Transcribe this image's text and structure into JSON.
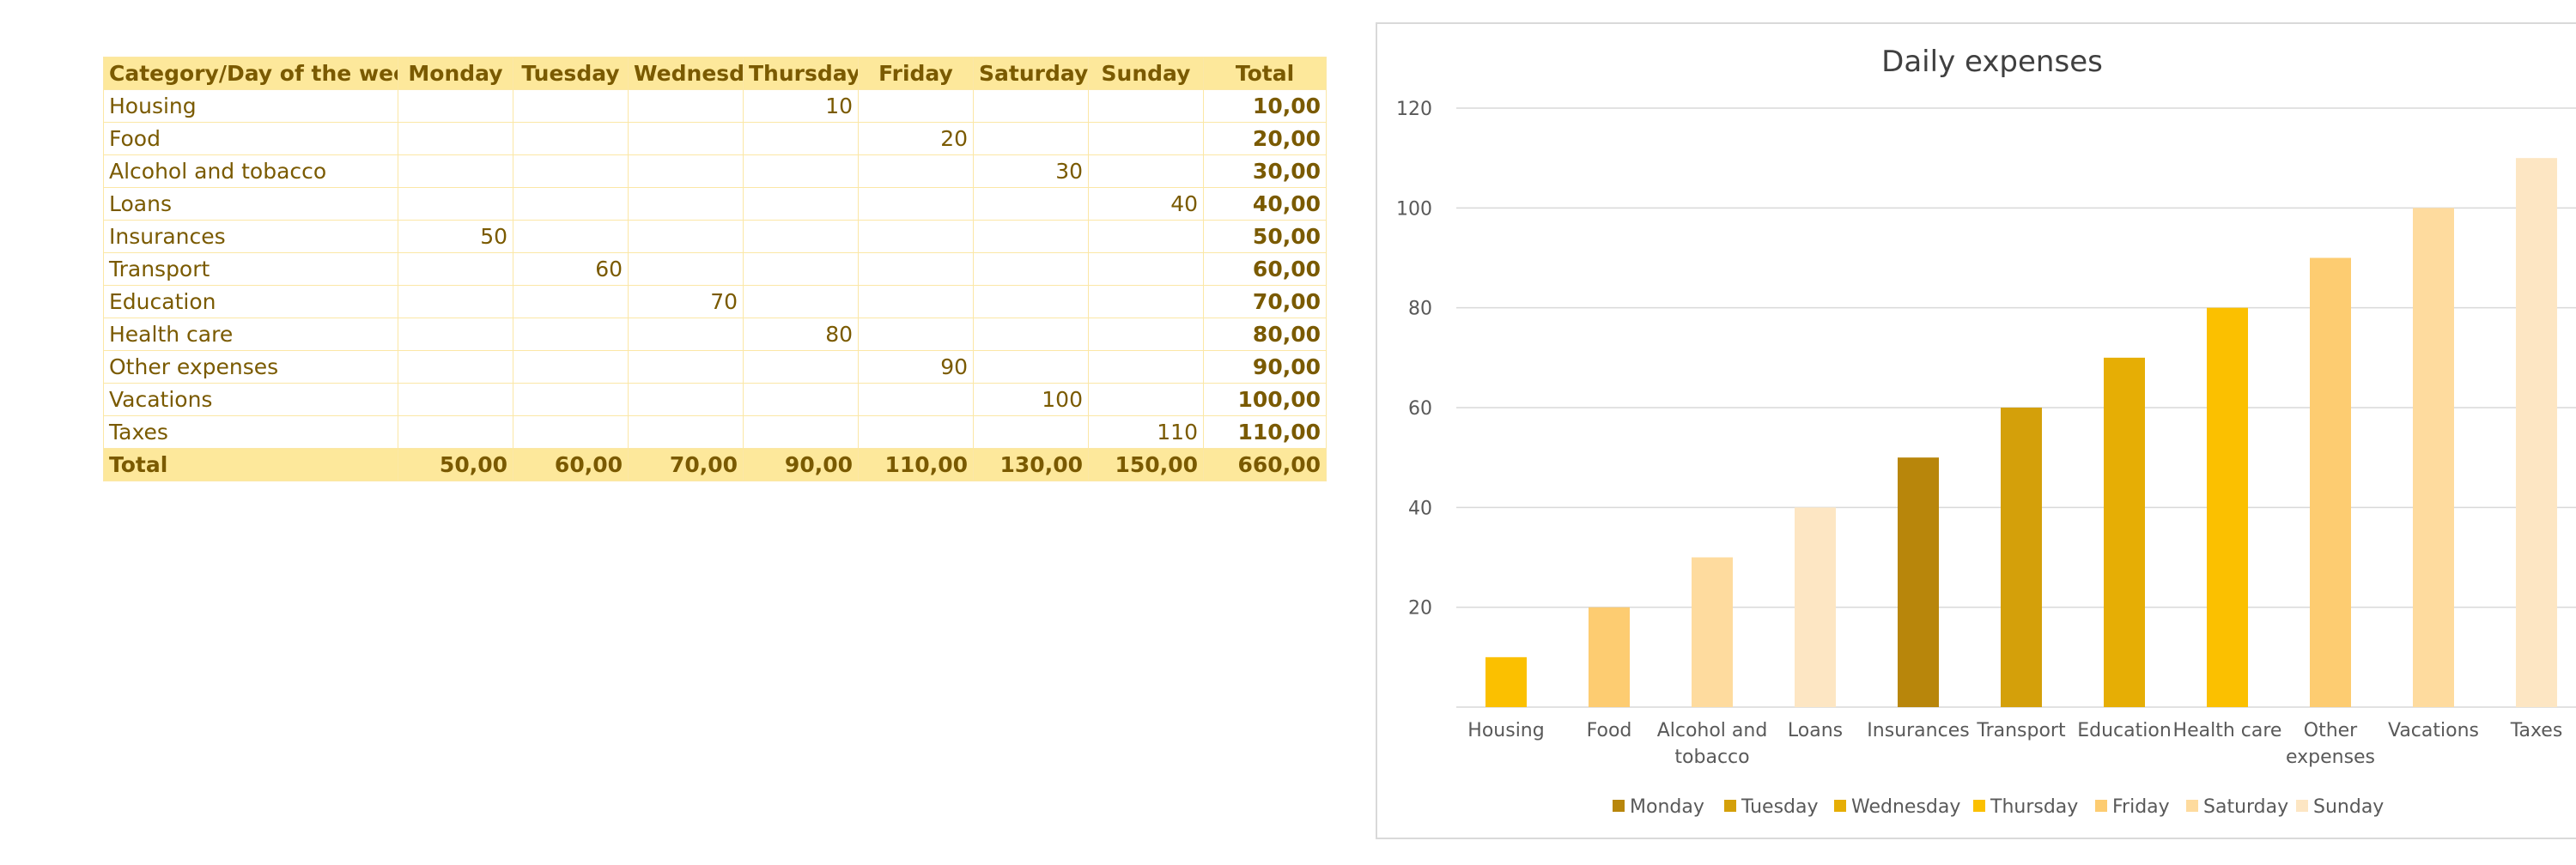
{
  "table": {
    "headers": [
      "Category/Day of the week",
      "Monday",
      "Tuesday",
      "Wednesday",
      "Thursday",
      "Friday",
      "Saturday",
      "Sunday",
      "Total"
    ],
    "rows": [
      {
        "category": "Housing",
        "cells": [
          "",
          "",
          "",
          "10",
          "",
          "",
          ""
        ],
        "total": "10,00"
      },
      {
        "category": "Food",
        "cells": [
          "",
          "",
          "",
          "",
          "20",
          "",
          ""
        ],
        "total": "20,00"
      },
      {
        "category": "Alcohol and tobacco",
        "cells": [
          "",
          "",
          "",
          "",
          "",
          "30",
          ""
        ],
        "total": "30,00"
      },
      {
        "category": "Loans",
        "cells": [
          "",
          "",
          "",
          "",
          "",
          "",
          "40"
        ],
        "total": "40,00"
      },
      {
        "category": "Insurances",
        "cells": [
          "50",
          "",
          "",
          "",
          "",
          "",
          ""
        ],
        "total": "50,00"
      },
      {
        "category": "Transport",
        "cells": [
          "",
          "60",
          "",
          "",
          "",
          "",
          ""
        ],
        "total": "60,00"
      },
      {
        "category": "Education",
        "cells": [
          "",
          "",
          "70",
          "",
          "",
          "",
          ""
        ],
        "total": "70,00"
      },
      {
        "category": "Health care",
        "cells": [
          "",
          "",
          "",
          "80",
          "",
          "",
          ""
        ],
        "total": "80,00"
      },
      {
        "category": "Other expenses",
        "cells": [
          "",
          "",
          "",
          "",
          "90",
          "",
          ""
        ],
        "total": "90,00"
      },
      {
        "category": "Vacations",
        "cells": [
          "",
          "",
          "",
          "",
          "",
          "100",
          ""
        ],
        "total": "100,00"
      },
      {
        "category": "Taxes",
        "cells": [
          "",
          "",
          "",
          "",
          "",
          "",
          "110"
        ],
        "total": "110,00"
      }
    ],
    "footer": [
      "Total",
      "50,00",
      "60,00",
      "70,00",
      "90,00",
      "110,00",
      "130,00",
      "150,00",
      "660,00"
    ]
  },
  "chart_data": {
    "type": "bar",
    "title": "Daily expenses",
    "categories": [
      "Housing",
      "Food",
      "Alcohol and tobacco",
      "Loans",
      "Insurances",
      "Transport",
      "Education",
      "Health care",
      "Other expenses",
      "Vacations",
      "Taxes"
    ],
    "category_label_lines": [
      [
        "Housing"
      ],
      [
        "Food"
      ],
      [
        "Alcohol and",
        "tobacco"
      ],
      [
        "Loans"
      ],
      [
        "Insurances"
      ],
      [
        "Transport"
      ],
      [
        "Education"
      ],
      [
        "Health care"
      ],
      [
        "Other",
        "expenses"
      ],
      [
        "Vacations"
      ],
      [
        "Taxes"
      ]
    ],
    "series": [
      {
        "name": "Monday",
        "color": "#b8860b",
        "values": [
          null,
          null,
          null,
          null,
          50,
          null,
          null,
          null,
          null,
          null,
          null
        ]
      },
      {
        "name": "Tuesday",
        "color": "#d4a00a",
        "values": [
          null,
          null,
          null,
          null,
          null,
          60,
          null,
          null,
          null,
          null,
          null
        ]
      },
      {
        "name": "Wednesday",
        "color": "#e6ae05",
        "values": [
          null,
          null,
          null,
          null,
          null,
          null,
          70,
          null,
          null,
          null,
          null
        ]
      },
      {
        "name": "Thursday",
        "color": "#fbc000",
        "values": [
          10,
          null,
          null,
          null,
          null,
          null,
          null,
          80,
          null,
          null,
          null
        ]
      },
      {
        "name": "Friday",
        "color": "#fdcc71",
        "values": [
          null,
          20,
          null,
          null,
          null,
          null,
          null,
          null,
          90,
          null,
          null
        ]
      },
      {
        "name": "Saturday",
        "color": "#fedb9e",
        "values": [
          null,
          null,
          30,
          null,
          null,
          null,
          null,
          null,
          null,
          100,
          null
        ]
      },
      {
        "name": "Sunday",
        "color": "#fde6c3",
        "values": [
          null,
          null,
          null,
          40,
          null,
          null,
          null,
          null,
          null,
          null,
          110
        ]
      }
    ],
    "yticks": [
      20,
      40,
      60,
      80,
      100,
      120
    ],
    "ylim": [
      0,
      120
    ],
    "grid": true,
    "legend": "bottom"
  }
}
